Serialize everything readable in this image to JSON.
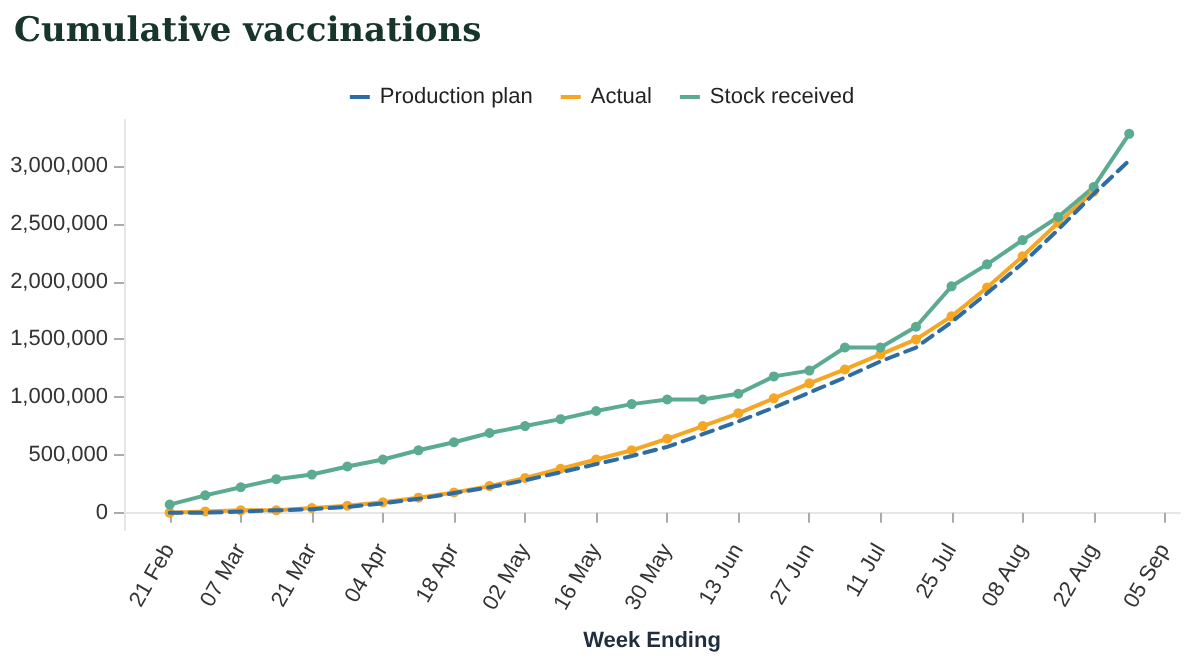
{
  "chart_data": {
    "type": "line",
    "title": "Cumulative vaccinations",
    "xlabel": "Week Ending",
    "x": [
      "--02-21",
      "--02-28",
      "--03-07",
      "--03-14",
      "--03-21",
      "--03-28",
      "--04-04",
      "--04-11",
      "--04-18",
      "--04-25",
      "--05-02",
      "--05-09",
      "--05-16",
      "--05-23",
      "--05-30",
      "--06-06",
      "--06-13",
      "--06-20",
      "--06-27",
      "--07-04",
      "--07-11",
      "--07-18",
      "--07-25",
      "--08-01",
      "--08-08",
      "--08-15",
      "--08-22",
      "--08-29"
    ],
    "series": [
      {
        "name": "Production plan",
        "color": "#2e6da4",
        "line_style": "dashed",
        "marker": "none",
        "values": [
          0,
          0,
          10000,
          20000,
          30000,
          50000,
          80000,
          120000,
          170000,
          220000,
          280000,
          350000,
          420000,
          490000,
          570000,
          680000,
          790000,
          910000,
          1040000,
          1170000,
          1310000,
          1430000,
          1650000,
          1900000,
          2160000,
          2450000,
          2760000,
          3050000
        ]
      },
      {
        "name": "Actual",
        "color": "#f5a623",
        "line_style": "solid",
        "marker": "circle",
        "values": [
          0,
          10000,
          20000,
          20000,
          40000,
          60000,
          90000,
          130000,
          175000,
          230000,
          300000,
          380000,
          460000,
          540000,
          640000,
          750000,
          860000,
          990000,
          1120000,
          1240000,
          1370000,
          1500000,
          1700000,
          1950000,
          2220000,
          2510000,
          2780000,
          null
        ]
      },
      {
        "name": "Stock received",
        "color": "#5aab8f",
        "line_style": "solid",
        "marker": "circle",
        "values": [
          70000,
          150000,
          220000,
          290000,
          330000,
          400000,
          460000,
          540000,
          610000,
          690000,
          750000,
          810000,
          880000,
          940000,
          980000,
          980000,
          1030000,
          1180000,
          1230000,
          1430000,
          1430000,
          1610000,
          1960000,
          2150000,
          2360000,
          2560000,
          2820000,
          3280000
        ]
      }
    ],
    "xlim": [
      "--02-12",
      "--09-08"
    ],
    "xticks": [
      {
        "value": "--02-21",
        "label": "21 Feb"
      },
      {
        "value": "--03-07",
        "label": "07 Mar"
      },
      {
        "value": "--03-21",
        "label": "21 Mar"
      },
      {
        "value": "--04-04",
        "label": "04 Apr"
      },
      {
        "value": "--04-18",
        "label": "18 Apr"
      },
      {
        "value": "--05-02",
        "label": "02 May"
      },
      {
        "value": "--05-16",
        "label": "16 May"
      },
      {
        "value": "--05-30",
        "label": "30 May"
      },
      {
        "value": "--06-13",
        "label": "13 Jun"
      },
      {
        "value": "--06-27",
        "label": "27 Jun"
      },
      {
        "value": "--07-11",
        "label": "11 Jul"
      },
      {
        "value": "--07-25",
        "label": "25 Jul"
      },
      {
        "value": "--08-08",
        "label": "08 Aug"
      },
      {
        "value": "--08-22",
        "label": "22 Aug"
      },
      {
        "value": "--09-05",
        "label": "05 Sep"
      }
    ],
    "ylim": [
      -150000,
      3400000
    ],
    "yticks": [
      0,
      {
        "value": 500000,
        "label": "500,000"
      },
      {
        "value": 1000000,
        "label": "1,000,000"
      },
      {
        "value": 1500000,
        "label": "1,500,000"
      },
      {
        "value": 2000000,
        "label": "2,000,000"
      },
      {
        "value": 2500000,
        "label": "2,500,000"
      },
      {
        "value": 3000000,
        "label": "3,000,000"
      }
    ],
    "grid": false,
    "legend": "top"
  }
}
